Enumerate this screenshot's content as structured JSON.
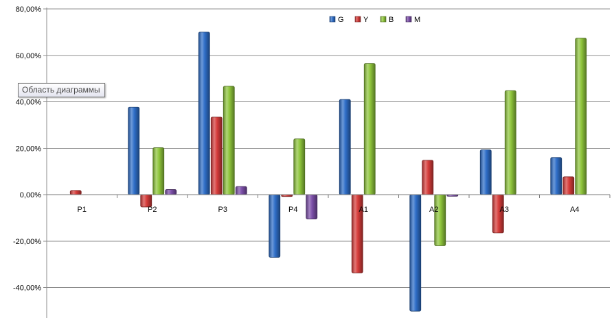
{
  "tooltip": "Область диаграммы",
  "chart_data": {
    "type": "bar",
    "title": "",
    "xlabel": "",
    "ylabel": "",
    "categories": [
      "P1",
      "P2",
      "P3",
      "P4",
      "A1",
      "A2",
      "A3",
      "A4"
    ],
    "series": [
      {
        "name": "G",
        "color": "#2f6ec8",
        "values": [
          0,
          37.7,
          70.0,
          -27.0,
          41.0,
          -50.2,
          19.3,
          16.0
        ]
      },
      {
        "name": "Y",
        "color": "#d63c3a",
        "values": [
          1.8,
          -5.3,
          33.4,
          -0.8,
          -33.7,
          14.8,
          -16.5,
          7.7
        ]
      },
      {
        "name": "B",
        "color": "#8fc63c",
        "values": [
          0,
          20.2,
          46.7,
          24.0,
          56.5,
          -22.0,
          44.8,
          67.4
        ]
      },
      {
        "name": "M",
        "color": "#7b4ea8",
        "values": [
          0,
          2.2,
          3.5,
          -10.5,
          0,
          -0.7,
          0,
          0
        ]
      }
    ],
    "ylim": [
      -50,
      80
    ],
    "yticks": [
      -40,
      -20,
      0,
      20,
      40,
      60,
      80
    ],
    "ytick_labels": [
      "-40,00%",
      "-20,00%",
      "0,00%",
      "20,00%",
      "40,00%",
      "60,00%",
      "80,00%"
    ],
    "grid": true,
    "legend_position": "top-center"
  }
}
